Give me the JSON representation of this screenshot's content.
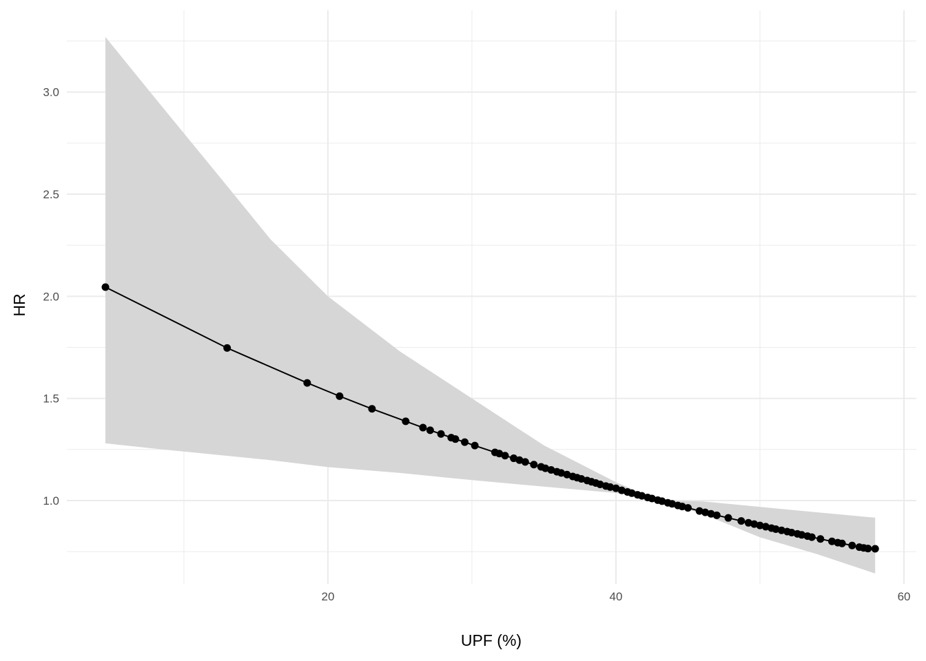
{
  "chart_data": {
    "type": "line",
    "title": "",
    "xlabel": "UPF (%)",
    "ylabel": "HR",
    "xlim": [
      1.87,
      60.86
    ],
    "ylim": [
      0.592,
      3.4
    ],
    "x_ticks": [
      20,
      40,
      60
    ],
    "x_tick_labels": [
      "20",
      "40",
      "60"
    ],
    "x_minor_gridlines": [
      10,
      30,
      50
    ],
    "y_ticks": [
      1.0,
      1.5,
      2.0,
      2.5,
      3.0
    ],
    "y_tick_labels": [
      "1.0",
      "1.5",
      "2.0",
      "2.5",
      "3.0"
    ],
    "y_minor_gridlines": [
      0.75,
      1.25,
      1.75,
      2.25,
      2.75,
      3.25
    ],
    "grid": true,
    "colors": {
      "line": "#000000",
      "points": "#000000",
      "ribbon": "#d6d6d6",
      "grid": "#ebebeb"
    },
    "series": [
      {
        "x": [
          4.55,
          13.0,
          18.56,
          20.81,
          23.06,
          25.4,
          26.6,
          27.1,
          27.85,
          28.56,
          28.85,
          29.5,
          30.2,
          31.6,
          31.9,
          32.3,
          32.9,
          33.3,
          33.7,
          34.3,
          34.8,
          35.1,
          35.5,
          35.9,
          36.2,
          36.6,
          37.0,
          37.3,
          37.6,
          38.0,
          38.3,
          38.6,
          38.9,
          39.3,
          39.6,
          40.0,
          40.4,
          40.8,
          41.1,
          41.5,
          41.8,
          42.2,
          42.5,
          42.9,
          43.2,
          43.6,
          43.9,
          44.3,
          44.6,
          45.0,
          45.8,
          46.2,
          46.6,
          47.0,
          47.8,
          48.7,
          49.2,
          49.6,
          50.0,
          50.4,
          50.8,
          51.1,
          51.5,
          51.9,
          52.2,
          52.6,
          52.9,
          53.3,
          53.6,
          54.2,
          55.0,
          55.4,
          55.7,
          56.4,
          56.9,
          57.2,
          57.5,
          58.0
        ],
        "y": [
          2.045,
          1.747,
          1.576,
          1.511,
          1.449,
          1.388,
          1.357,
          1.344,
          1.326,
          1.308,
          1.301,
          1.286,
          1.269,
          1.236,
          1.23,
          1.22,
          1.207,
          1.198,
          1.189,
          1.176,
          1.165,
          1.158,
          1.15,
          1.141,
          1.135,
          1.127,
          1.118,
          1.112,
          1.106,
          1.098,
          1.092,
          1.086,
          1.079,
          1.071,
          1.066,
          1.06,
          1.05,
          1.042,
          1.036,
          1.028,
          1.023,
          1.015,
          1.01,
          1.002,
          0.997,
          0.989,
          0.984,
          0.976,
          0.971,
          0.964,
          0.949,
          0.942,
          0.935,
          0.928,
          0.915,
          0.9,
          0.891,
          0.885,
          0.878,
          0.872,
          0.865,
          0.86,
          0.854,
          0.848,
          0.843,
          0.837,
          0.832,
          0.826,
          0.821,
          0.812,
          0.8,
          0.794,
          0.79,
          0.78,
          0.772,
          0.768,
          0.765,
          0.764
        ]
      }
    ],
    "ribbon": {
      "x": [
        4.55,
        8,
        13,
        16,
        20,
        25,
        30,
        35,
        40,
        43,
        46,
        50,
        54,
        58
      ],
      "lower": [
        1.28,
        1.254,
        1.219,
        1.198,
        1.164,
        1.135,
        1.1,
        1.068,
        1.037,
        1.0,
        0.935,
        0.82,
        0.737,
        0.643
      ],
      "upper": [
        3.27,
        2.97,
        2.54,
        2.28,
        2.0,
        1.73,
        1.5,
        1.27,
        1.09,
        1.0,
        0.996,
        0.969,
        0.942,
        0.916
      ]
    }
  }
}
